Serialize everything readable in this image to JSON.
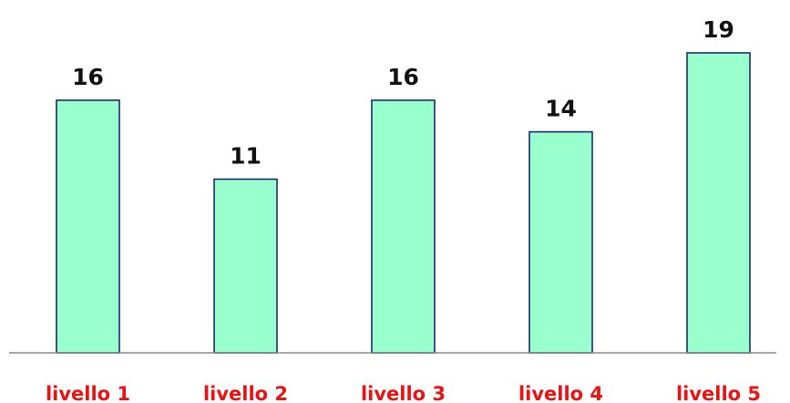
{
  "chart_data": {
    "type": "bar",
    "categories": [
      "livello 1",
      "livello 2",
      "livello 3",
      "livello 4",
      "livello 5"
    ],
    "values": [
      16,
      11,
      16,
      14,
      19
    ],
    "ylim": [
      0,
      19
    ],
    "title": "",
    "xlabel": "",
    "ylabel": "",
    "grid": false,
    "colors": {
      "bar_fill": "#99ffcc",
      "bar_stroke": "#1a2a6c",
      "category_label": "#ee1111",
      "value_label": "#111111",
      "axis": "#8a8a8a"
    }
  }
}
